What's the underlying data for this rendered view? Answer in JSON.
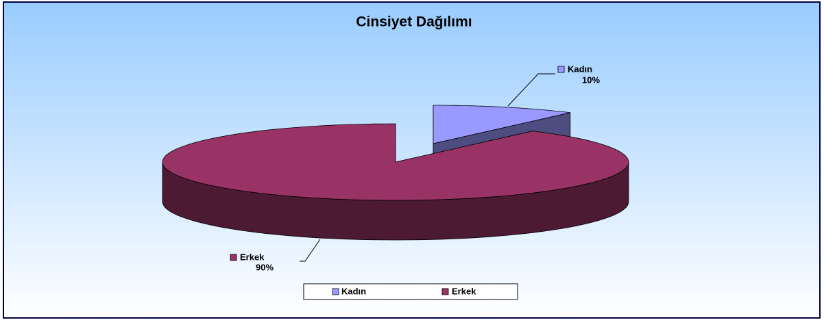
{
  "chart_data": {
    "type": "pie",
    "title": "Cinsiyet Dağılımı",
    "categories": [
      "Kadın",
      "Erkek"
    ],
    "values": [
      10,
      90
    ],
    "value_labels": [
      "10%",
      "90%"
    ],
    "colors": [
      "#9999ff",
      "#993366"
    ],
    "legend": "bottom"
  }
}
